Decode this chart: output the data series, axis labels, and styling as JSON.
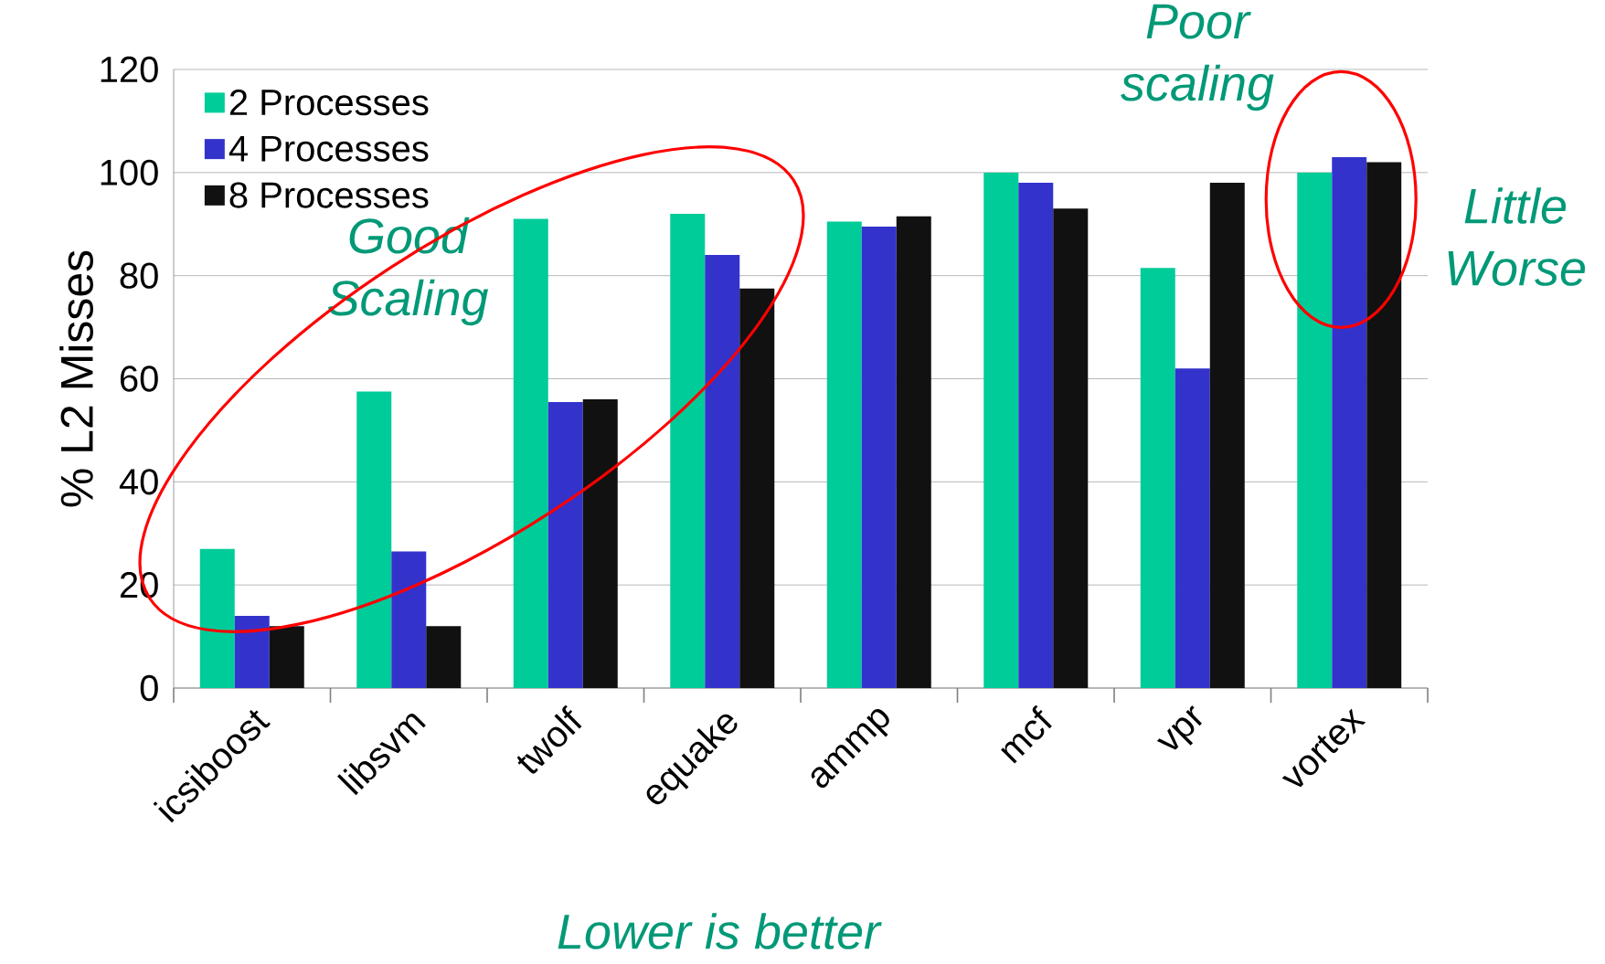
{
  "chart_data": {
    "type": "bar",
    "ylabel": "% L2 Misses",
    "categories": [
      "icsiboost",
      "libsvm",
      "twolf",
      "equake",
      "ammp",
      "mcf",
      "vpr",
      "vortex"
    ],
    "series": [
      {
        "name": "2 Processes",
        "color": "#00cc99",
        "values": [
          27,
          57.5,
          91,
          92,
          90.5,
          100,
          81.5,
          100
        ]
      },
      {
        "name": "4 Processes",
        "color": "#3333cc",
        "values": [
          14,
          26.5,
          55.5,
          84,
          89.5,
          98,
          62,
          103
        ]
      },
      {
        "name": "8 Processes",
        "color": "#111111",
        "values": [
          12,
          12,
          56,
          77.5,
          91.5,
          93,
          98,
          102
        ]
      }
    ],
    "ylim": [
      0,
      120
    ],
    "yticks": [
      0,
      20,
      40,
      60,
      80,
      100,
      120
    ],
    "grid": "y",
    "legend": "top left",
    "annotations": [
      "Good Scaling",
      "Poor scaling",
      "Little Worse",
      "Lower is better"
    ]
  }
}
